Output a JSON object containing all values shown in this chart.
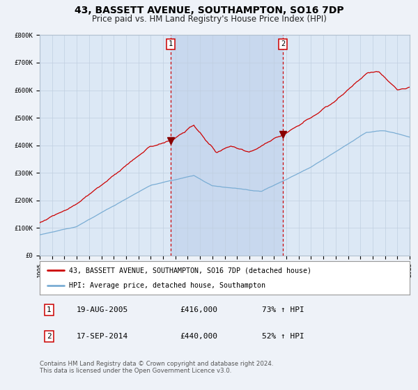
{
  "title": "43, BASSETT AVENUE, SOUTHAMPTON, SO16 7DP",
  "subtitle": "Price paid vs. HM Land Registry's House Price Index (HPI)",
  "bg_color": "#eef2f8",
  "plot_bg_color": "#dce8f5",
  "highlight_bg": "#c8d8ee",
  "y_min": 0,
  "y_max": 800000,
  "x_start_year": 1995,
  "x_end_year": 2025,
  "sale1_date": 2005.63,
  "sale1_price": 416000,
  "sale1_label": "1",
  "sale2_date": 2014.72,
  "sale2_price": 440000,
  "sale2_label": "2",
  "legend_line1": "43, BASSETT AVENUE, SOUTHAMPTON, SO16 7DP (detached house)",
  "legend_line2": "HPI: Average price, detached house, Southampton",
  "table_row1": [
    "1",
    "19-AUG-2005",
    "£416,000",
    "73% ↑ HPI"
  ],
  "table_row2": [
    "2",
    "17-SEP-2014",
    "£440,000",
    "52% ↑ HPI"
  ],
  "footer": "Contains HM Land Registry data © Crown copyright and database right 2024.\nThis data is licensed under the Open Government Licence v3.0.",
  "red_line_color": "#cc0000",
  "blue_line_color": "#7aadd4",
  "marker_color": "#880000",
  "vline_color": "#cc0000",
  "grid_color": "#c0cfe0",
  "tick_label_size": 6.5,
  "title_fontsize": 10,
  "subtitle_fontsize": 8.5
}
